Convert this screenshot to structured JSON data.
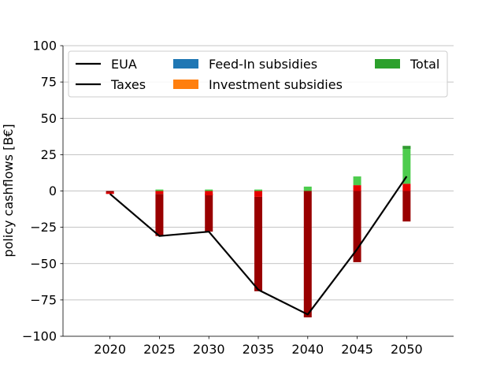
{
  "chart_data": {
    "type": "bar",
    "ylabel": "policy cashflows [B€]",
    "xlabel": "",
    "title": "",
    "ylim": [
      -100,
      100
    ],
    "yticks": [
      -100,
      -75,
      -50,
      -25,
      0,
      25,
      50,
      75,
      100
    ],
    "categories": [
      "2020",
      "2025",
      "2030",
      "2035",
      "2040",
      "2045",
      "2050"
    ],
    "x": [
      2020,
      2025,
      2030,
      2035,
      2040,
      2045,
      2050
    ],
    "grid": "y",
    "legend": {
      "placement": "top",
      "entries": [
        {
          "label": "EUA",
          "kind": "line",
          "color": "#000000"
        },
        {
          "label": "Taxes",
          "kind": "line",
          "color": "#000000"
        },
        {
          "label": "Feed-In subsidies",
          "kind": "patch",
          "color": "#1f77b4"
        },
        {
          "label": "Investment subsidies",
          "kind": "patch",
          "color": "#ff7f0e"
        },
        {
          "label": "Total",
          "kind": "patch",
          "color": "#2ca02c"
        }
      ]
    },
    "bar_segments": {
      "dark_red": {
        "color": "#990000",
        "ranges": [
          [
            -2,
            0
          ],
          [
            -31,
            -2
          ],
          [
            -28,
            -2
          ],
          [
            -69,
            -4
          ],
          [
            -87,
            0
          ],
          [
            -49,
            0
          ],
          [
            -21,
            0
          ]
        ]
      },
      "red": {
        "color": "#e60000",
        "ranges": [
          [
            -2,
            -1
          ],
          [
            -2,
            0
          ],
          [
            -3,
            0
          ],
          [
            -4,
            0
          ],
          [
            0,
            0
          ],
          [
            0,
            4
          ],
          [
            0,
            5
          ]
        ]
      },
      "green": {
        "color": "#4dcc4d",
        "ranges": [
          [
            0,
            0
          ],
          [
            0,
            1
          ],
          [
            0,
            1
          ],
          [
            0,
            1
          ],
          [
            0,
            3
          ],
          [
            4,
            10
          ],
          [
            5,
            31
          ]
        ]
      },
      "dark_green": {
        "color": "#339933",
        "ranges": [
          [
            0,
            0
          ],
          [
            0,
            0
          ],
          [
            0,
            0
          ],
          [
            0,
            0
          ],
          [
            0,
            0
          ],
          [
            0,
            0
          ],
          [
            29,
            31
          ]
        ]
      }
    },
    "series": [
      {
        "name": "EUA",
        "type": "line",
        "color": "#000000",
        "values": [
          -2,
          -31,
          -28,
          -68,
          -85,
          -40,
          10
        ]
      }
    ]
  }
}
